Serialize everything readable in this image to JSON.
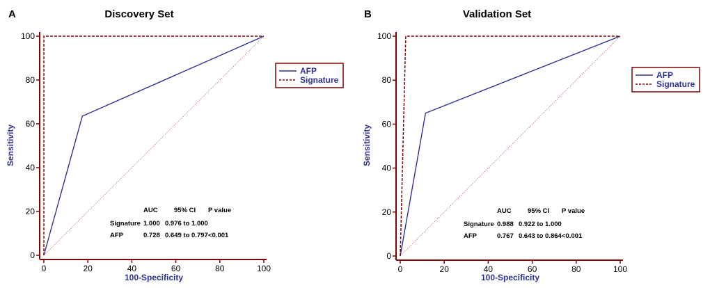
{
  "colors": {
    "axis": "#800000",
    "afp": "#2e3192",
    "signature": "#800000",
    "reference": "#c26d6d",
    "text_blue": "#2e3192"
  },
  "chart_data": [
    {
      "type": "line",
      "panel_label": "A",
      "title": "Discovery Set",
      "xlabel": "100-Specificity",
      "ylabel": "Sensitivity",
      "xlim": [
        0,
        100
      ],
      "ylim": [
        0,
        100
      ],
      "xticks": [
        0,
        20,
        40,
        60,
        80,
        100
      ],
      "yticks": [
        0,
        20,
        40,
        60,
        80,
        100
      ],
      "grid": false,
      "legend_position": "right",
      "series": [
        {
          "name": "AFP",
          "style": "solid",
          "points": [
            [
              0,
              0
            ],
            [
              17.5,
              63.5
            ],
            [
              100,
              100
            ]
          ]
        },
        {
          "name": "Signature",
          "style": "dashed",
          "points": [
            [
              0,
              0
            ],
            [
              0,
              100
            ],
            [
              100,
              100
            ]
          ]
        }
      ],
      "reference_line": [
        [
          0,
          0
        ],
        [
          100,
          100
        ]
      ],
      "stats_table": {
        "headers": [
          "AUC",
          "95% CI",
          "P value"
        ],
        "rows": [
          {
            "label": "Signature",
            "auc": "1.000",
            "ci": "0.976 to 1.000",
            "p": ""
          },
          {
            "label": "AFP",
            "auc": "0.728",
            "ci": "0.649 to 0.797",
            "p": "<0.001"
          }
        ]
      }
    },
    {
      "type": "line",
      "panel_label": "B",
      "title": "Validation Set",
      "xlabel": "100-Specificity",
      "ylabel": "Sensitivity",
      "xlim": [
        0,
        100
      ],
      "ylim": [
        0,
        100
      ],
      "xticks": [
        0,
        20,
        40,
        60,
        80,
        100
      ],
      "yticks": [
        0,
        20,
        40,
        60,
        80,
        100
      ],
      "grid": false,
      "legend_position": "right",
      "series": [
        {
          "name": "AFP",
          "style": "solid",
          "points": [
            [
              0,
              0
            ],
            [
              11.5,
              65
            ],
            [
              100,
              100
            ]
          ]
        },
        {
          "name": "Signature",
          "style": "dashed",
          "points": [
            [
              0,
              0
            ],
            [
              2.5,
              100
            ],
            [
              100,
              100
            ]
          ]
        }
      ],
      "reference_line": [
        [
          0,
          0
        ],
        [
          100,
          100
        ]
      ],
      "stats_table": {
        "headers": [
          "AUC",
          "95% CI",
          "P value"
        ],
        "rows": [
          {
            "label": "Signature",
            "auc": "0.988",
            "ci": "0.922 to 1.000",
            "p": ""
          },
          {
            "label": "AFP",
            "auc": "0.767",
            "ci": "0.643 to 0.864",
            "p": "<0.001"
          }
        ]
      }
    }
  ]
}
